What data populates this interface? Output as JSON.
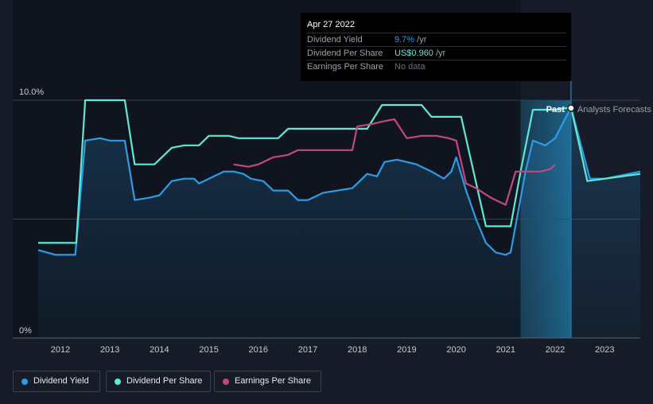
{
  "tooltip": {
    "date": "Apr 27 2022",
    "rows": [
      {
        "label": "Dividend Yield",
        "value": "9.7%",
        "unit": " /yr",
        "color": "#2e9be6"
      },
      {
        "label": "Dividend Per Share",
        "value": "US$0.960",
        "unit": " /yr",
        "color": "#5fe8d3"
      },
      {
        "label": "Earnings Per Share",
        "value": "No data",
        "unit": "",
        "color": "#6b7079"
      }
    ]
  },
  "markers": {
    "past": "Past",
    "forecast": "Analysts Forecasts"
  },
  "legend": [
    {
      "label": "Dividend Yield",
      "color": "#2e9be6"
    },
    {
      "label": "Dividend Per Share",
      "color": "#5fe8d3"
    },
    {
      "label": "Earnings Per Share",
      "color": "#c2497f"
    }
  ],
  "chart_data": {
    "type": "line",
    "y_tick_labels": [
      "10.0%",
      "0%"
    ],
    "ylim": [
      0,
      10
    ],
    "xlim": [
      2011.55,
      2023.72
    ],
    "x_ticks": [
      2012,
      2013,
      2014,
      2015,
      2016,
      2017,
      2018,
      2019,
      2020,
      2021,
      2022,
      2023
    ],
    "forecast_start": 2021.3,
    "cursor_x": 2022.32,
    "series": [
      {
        "name": "Dividend Yield",
        "color": "#2e9be6",
        "filled": true,
        "points": [
          [
            2011.55,
            3.7
          ],
          [
            2011.9,
            3.5
          ],
          [
            2012.3,
            3.5
          ],
          [
            2012.5,
            8.3
          ],
          [
            2012.8,
            8.4
          ],
          [
            2013.0,
            8.3
          ],
          [
            2013.3,
            8.3
          ],
          [
            2013.5,
            5.8
          ],
          [
            2013.8,
            5.9
          ],
          [
            2014.0,
            6.0
          ],
          [
            2014.25,
            6.6
          ],
          [
            2014.5,
            6.7
          ],
          [
            2014.7,
            6.7
          ],
          [
            2014.8,
            6.5
          ],
          [
            2015.0,
            6.7
          ],
          [
            2015.3,
            7.0
          ],
          [
            2015.5,
            7.0
          ],
          [
            2015.7,
            6.9
          ],
          [
            2015.85,
            6.7
          ],
          [
            2016.1,
            6.6
          ],
          [
            2016.3,
            6.2
          ],
          [
            2016.6,
            6.2
          ],
          [
            2016.8,
            5.8
          ],
          [
            2017.0,
            5.8
          ],
          [
            2017.3,
            6.1
          ],
          [
            2017.6,
            6.2
          ],
          [
            2017.9,
            6.3
          ],
          [
            2018.0,
            6.5
          ],
          [
            2018.2,
            6.9
          ],
          [
            2018.4,
            6.8
          ],
          [
            2018.55,
            7.4
          ],
          [
            2018.8,
            7.5
          ],
          [
            2019.0,
            7.4
          ],
          [
            2019.2,
            7.3
          ],
          [
            2019.5,
            7.0
          ],
          [
            2019.75,
            6.7
          ],
          [
            2019.9,
            7.0
          ],
          [
            2020.0,
            7.6
          ],
          [
            2020.2,
            6.2
          ],
          [
            2020.4,
            5.0
          ],
          [
            2020.6,
            4.0
          ],
          [
            2020.8,
            3.6
          ],
          [
            2021.0,
            3.5
          ],
          [
            2021.1,
            3.6
          ],
          [
            2021.4,
            7.0
          ],
          [
            2021.55,
            8.3
          ],
          [
            2021.8,
            8.1
          ],
          [
            2022.0,
            8.4
          ],
          [
            2022.32,
            9.7
          ],
          [
            2022.7,
            6.7
          ],
          [
            2023.0,
            6.7
          ],
          [
            2023.72,
            7.0
          ]
        ]
      },
      {
        "name": "Dividend Per Share",
        "color": "#5fe8d3",
        "points": [
          [
            2011.55,
            4.0
          ],
          [
            2012.32,
            4.0
          ],
          [
            2012.5,
            10.0
          ],
          [
            2013.3,
            10.0
          ],
          [
            2013.5,
            7.3
          ],
          [
            2013.9,
            7.3
          ],
          [
            2014.25,
            8.0
          ],
          [
            2014.5,
            8.1
          ],
          [
            2014.8,
            8.1
          ],
          [
            2015.0,
            8.5
          ],
          [
            2015.4,
            8.5
          ],
          [
            2015.6,
            8.4
          ],
          [
            2016.4,
            8.4
          ],
          [
            2016.6,
            8.8
          ],
          [
            2017.9,
            8.8
          ],
          [
            2018.2,
            8.8
          ],
          [
            2018.5,
            9.8
          ],
          [
            2019.3,
            9.8
          ],
          [
            2019.5,
            9.3
          ],
          [
            2020.1,
            9.3
          ],
          [
            2020.6,
            4.7
          ],
          [
            2021.1,
            4.7
          ],
          [
            2021.3,
            7.0
          ],
          [
            2021.55,
            9.6
          ],
          [
            2022.0,
            9.6
          ],
          [
            2022.32,
            9.7
          ],
          [
            2022.65,
            6.6
          ],
          [
            2023.0,
            6.7
          ],
          [
            2023.72,
            6.9
          ]
        ]
      },
      {
        "name": "Earnings Per Share",
        "color": "#c2497f",
        "points": [
          [
            2015.5,
            7.3
          ],
          [
            2015.8,
            7.2
          ],
          [
            2016.0,
            7.3
          ],
          [
            2016.3,
            7.6
          ],
          [
            2016.6,
            7.7
          ],
          [
            2016.8,
            7.9
          ],
          [
            2017.0,
            7.9
          ],
          [
            2017.3,
            7.9
          ],
          [
            2017.5,
            7.9
          ],
          [
            2017.9,
            7.9
          ],
          [
            2018.0,
            8.9
          ],
          [
            2018.3,
            9.0
          ],
          [
            2018.5,
            9.1
          ],
          [
            2018.75,
            9.2
          ],
          [
            2019.0,
            8.4
          ],
          [
            2019.3,
            8.5
          ],
          [
            2019.6,
            8.5
          ],
          [
            2019.85,
            8.4
          ],
          [
            2020.0,
            8.3
          ],
          [
            2020.2,
            6.5
          ],
          [
            2020.4,
            6.3
          ],
          [
            2020.7,
            5.9
          ],
          [
            2021.0,
            5.6
          ],
          [
            2021.2,
            7.0
          ],
          [
            2021.5,
            7.0
          ],
          [
            2021.7,
            7.0
          ],
          [
            2021.9,
            7.1
          ],
          [
            2022.0,
            7.3
          ]
        ]
      }
    ]
  }
}
